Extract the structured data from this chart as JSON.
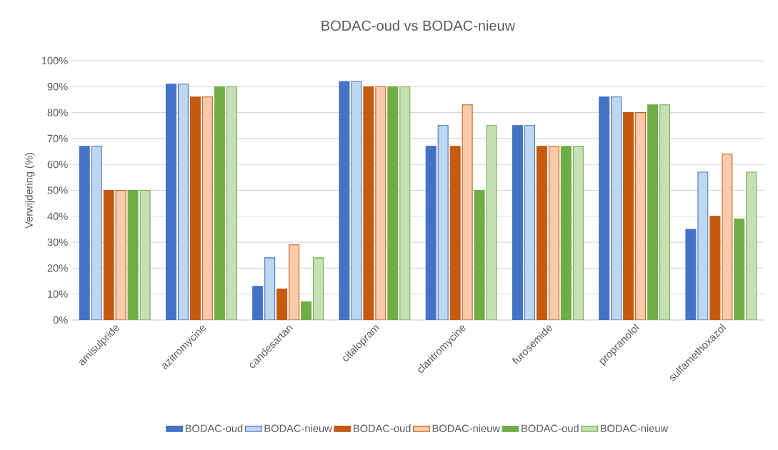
{
  "chart_data": {
    "type": "bar",
    "title": "BODAC-oud vs BODAC-nieuw",
    "ylabel": "Verwijdering (%)",
    "categories": [
      "amisulpride",
      "azitromycine",
      "candesartan",
      "citalopram",
      "claritromycine",
      "furosemide",
      "propranolol",
      "sulfamethoxazol"
    ],
    "series": [
      {
        "name": "BODAC-oud",
        "color": "#4472c4",
        "values": [
          67,
          91,
          13,
          92,
          67,
          75,
          86,
          35
        ]
      },
      {
        "name": "BODAC-nieuw",
        "color": "#bdd7ee",
        "values": [
          67,
          91,
          24,
          92,
          75,
          75,
          86,
          57
        ]
      },
      {
        "name": "BODAC-oud",
        "color": "#c55a11",
        "values": [
          50,
          86,
          12,
          90,
          67,
          67,
          80,
          40
        ]
      },
      {
        "name": "BODAC-nieuw",
        "color": "#f8cbad",
        "values": [
          50,
          86,
          29,
          90,
          83,
          67,
          80,
          64
        ]
      },
      {
        "name": "BODAC-oud",
        "color": "#70ad47",
        "values": [
          50,
          90,
          7,
          90,
          50,
          67,
          83,
          39
        ]
      },
      {
        "name": "BODAC-nieuw",
        "color": "#c5e0b4",
        "values": [
          50,
          90,
          24,
          90,
          75,
          67,
          83,
          57
        ]
      }
    ],
    "ylim": [
      0,
      100
    ],
    "yticks": [
      {
        "value": 0,
        "label": "0%"
      },
      {
        "value": 10,
        "label": "10%"
      },
      {
        "value": 20,
        "label": "20%"
      },
      {
        "value": 30,
        "label": "30%"
      },
      {
        "value": 40,
        "label": "40%"
      },
      {
        "value": 50,
        "label": "50%"
      },
      {
        "value": 60,
        "label": "60%"
      },
      {
        "value": 70,
        "label": "70%"
      },
      {
        "value": 80,
        "label": "80%"
      },
      {
        "value": 90,
        "label": "90%"
      },
      {
        "value": 100,
        "label": "100%"
      }
    ],
    "grid": "y",
    "legend": "bottom"
  }
}
